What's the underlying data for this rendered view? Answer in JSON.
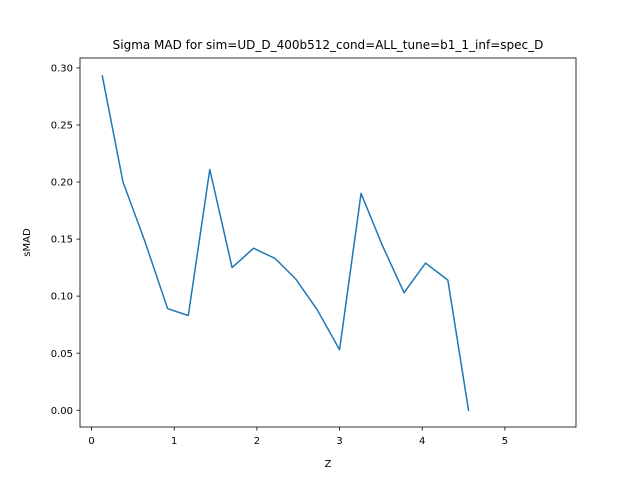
{
  "chart_data": {
    "type": "line",
    "title": "Sigma MAD for sim=UD_D_400b512_cond=ALL_tune=b1_1_inf=spec_D",
    "xlabel": "Z",
    "ylabel": "sMAD",
    "xlim": [
      -0.14,
      5.86
    ],
    "ylim": [
      -0.0147,
      0.3087
    ],
    "grid": false,
    "xticks": [
      0,
      1,
      2,
      3,
      4,
      5
    ],
    "xtick_labels": [
      "0",
      "1",
      "2",
      "3",
      "4",
      "5"
    ],
    "yticks": [
      0.0,
      0.05,
      0.1,
      0.15,
      0.2,
      0.25,
      0.3
    ],
    "ytick_labels": [
      "0.00",
      "0.05",
      "0.10",
      "0.15",
      "0.20",
      "0.25",
      "0.30"
    ],
    "series": [
      {
        "color": "#1f77b4",
        "x": [
          0.13,
          0.38,
          0.64,
          0.92,
          1.17,
          1.43,
          1.7,
          1.96,
          2.22,
          2.47,
          2.73,
          3.0,
          3.26,
          3.52,
          3.78,
          4.04,
          4.31,
          4.56
        ],
        "y": [
          0.293,
          0.2,
          0.149,
          0.089,
          0.083,
          0.211,
          0.125,
          0.142,
          0.133,
          0.115,
          0.088,
          0.053,
          0.19,
          0.144,
          0.103,
          0.129,
          0.114,
          0.0
        ]
      }
    ]
  }
}
